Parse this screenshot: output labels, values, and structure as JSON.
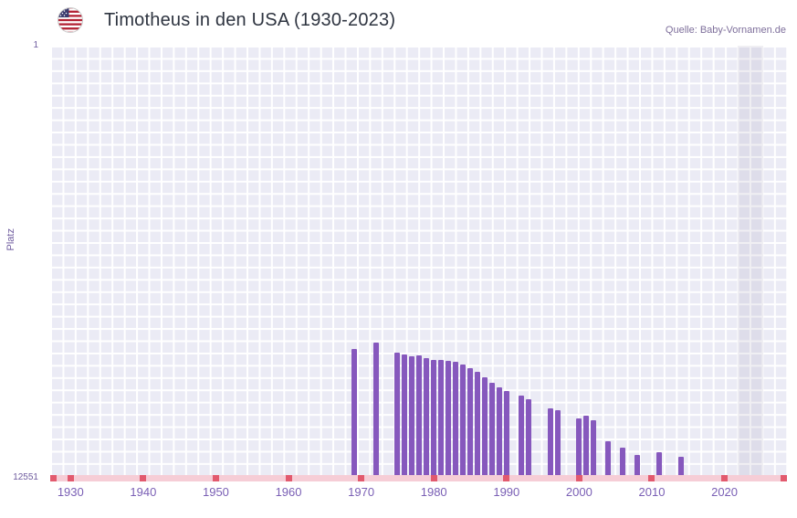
{
  "header": {
    "title": "Timotheus in den USA (1930-2023)",
    "source": "Quelle: Baby-Vornamen.de",
    "flag_icon": "us-flag-icon"
  },
  "chart_data": {
    "type": "bar",
    "title": "Timotheus in den USA (1930-2023)",
    "xlabel": "",
    "ylabel": "Platz",
    "y_axis": {
      "min": 1,
      "max": 12551,
      "inverted": true,
      "top_tick": "1",
      "bottom_tick": "12551"
    },
    "x_domain": [
      1927.2,
      2028.6
    ],
    "x_ticks": [
      "1930",
      "1940",
      "1950",
      "1960",
      "1970",
      "1980",
      "1990",
      "2000",
      "2010",
      "2020"
    ],
    "grid": true,
    "legend": false,
    "bar_color": "#8658bd",
    "plot_bg_color": "#ebebf5",
    "grid_color": "#ffffff",
    "axis_label_color": "#7a5fb5",
    "baseline_strip": {
      "strip_color": "#f6cdd6",
      "mark_color": "#e25a6e",
      "meaning": "years without ranking"
    },
    "highlight_band": {
      "from_year": 2021.8,
      "to_year": 2025.3,
      "color": "rgba(104,98,134,0.10)"
    },
    "series": [
      {
        "name": "Platz",
        "points": [
          {
            "year": 1969,
            "rank": 8770
          },
          {
            "year": 1972,
            "rank": 8600
          },
          {
            "year": 1975,
            "rank": 8880
          },
          {
            "year": 1976,
            "rank": 8930
          },
          {
            "year": 1977,
            "rank": 8980
          },
          {
            "year": 1978,
            "rank": 8960
          },
          {
            "year": 1979,
            "rank": 9040
          },
          {
            "year": 1980,
            "rank": 9100
          },
          {
            "year": 1981,
            "rank": 9080
          },
          {
            "year": 1982,
            "rank": 9110
          },
          {
            "year": 1983,
            "rank": 9150
          },
          {
            "year": 1984,
            "rank": 9230
          },
          {
            "year": 1985,
            "rank": 9320
          },
          {
            "year": 1986,
            "rank": 9440
          },
          {
            "year": 1987,
            "rank": 9580
          },
          {
            "year": 1988,
            "rank": 9760
          },
          {
            "year": 1989,
            "rank": 9890
          },
          {
            "year": 1990,
            "rank": 9980
          },
          {
            "year": 1992,
            "rank": 10120
          },
          {
            "year": 1993,
            "rank": 10230
          },
          {
            "year": 1996,
            "rank": 10480
          },
          {
            "year": 1997,
            "rank": 10540
          },
          {
            "year": 2000,
            "rank": 10780
          },
          {
            "year": 2001,
            "rank": 10700
          },
          {
            "year": 2002,
            "rank": 10830
          },
          {
            "year": 2004,
            "rank": 11440
          },
          {
            "year": 2006,
            "rank": 11630
          },
          {
            "year": 2008,
            "rank": 11840
          },
          {
            "year": 2011,
            "rank": 11760
          },
          {
            "year": 2014,
            "rank": 11890
          }
        ]
      }
    ]
  }
}
